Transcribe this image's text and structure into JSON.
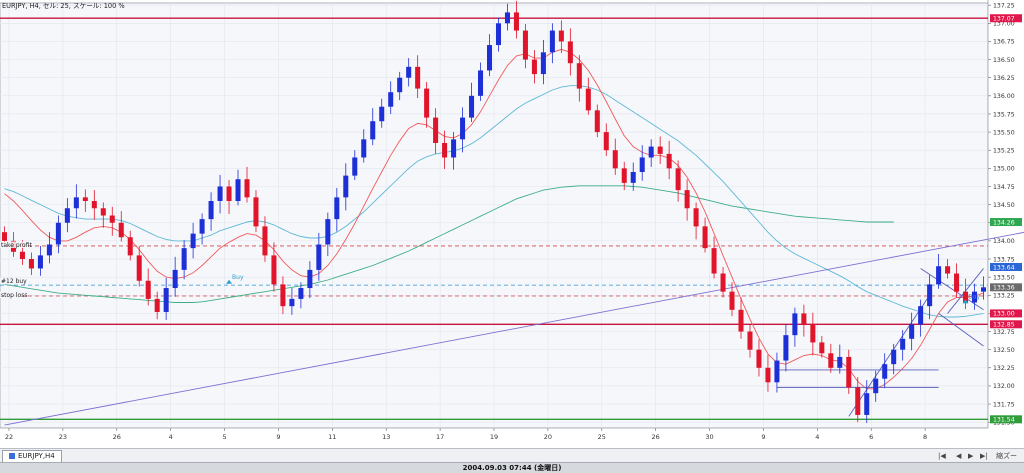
{
  "chart_data": {
    "type": "candlestick",
    "symbol_info": "EURJPY, H4, セル: 25, スケール: 100 %",
    "y_ticks": [
      "137.25",
      "137.00",
      "136.75",
      "136.50",
      "136.25",
      "136.00",
      "135.75",
      "135.50",
      "135.25",
      "135.00",
      "134.75",
      "134.50",
      "134.25",
      "134.00",
      "133.75",
      "133.50",
      "133.25",
      "133.00",
      "132.75",
      "132.50",
      "132.25",
      "132.00",
      "131.75",
      "131.50"
    ],
    "ylim": [
      131.42,
      137.28
    ],
    "x_ticks": [
      "22",
      "23",
      "26",
      "4",
      "5",
      "9",
      "11",
      "13",
      "17",
      "19",
      "20",
      "25",
      "26",
      "30",
      "9",
      "4",
      "6",
      "8"
    ],
    "x_tick_positions": [
      0,
      6,
      12,
      18,
      24,
      30,
      36,
      42,
      48,
      54,
      60,
      66,
      72,
      78,
      84,
      90,
      96,
      102
    ],
    "x_visible_end": 110,
    "price_labels": [
      {
        "price": 137.07,
        "text": "137.07",
        "color": "#e0174a"
      },
      {
        "price": 134.26,
        "text": "134.26",
        "color": "#2ea84f"
      },
      {
        "price": 133.64,
        "text": "133.64",
        "color": "#2b66d6"
      },
      {
        "price": 133.36,
        "text": "133.36",
        "color": "#6b6b6b"
      },
      {
        "price": 133.0,
        "text": "133.00",
        "color": "#e0174a"
      },
      {
        "price": 132.85,
        "text": "132.85",
        "color": "#e0174a"
      },
      {
        "price": 131.54,
        "text": "131.54",
        "color": "#2e9d3a"
      }
    ],
    "hlines": [
      {
        "price": 137.07,
        "color": "#c8143c",
        "style": "solid",
        "width": 1.4
      },
      {
        "price": 132.85,
        "color": "#c8143c",
        "style": "solid",
        "width": 1.4
      },
      {
        "price": 131.54,
        "color": "#2e9d3a",
        "style": "solid",
        "width": 1.4
      },
      {
        "price": 133.93,
        "color": "#d24a4a",
        "style": "dash",
        "width": 0.8
      },
      {
        "price": 133.39,
        "color": "#2b8fd6",
        "style": "dash",
        "width": 0.8
      },
      {
        "price": 133.24,
        "color": "#d24a4a",
        "style": "dash",
        "width": 0.8
      }
    ],
    "order_labels": [
      {
        "text": "take profit",
        "price": 133.93
      },
      {
        "text": "#12 buy",
        "price": 133.43
      },
      {
        "text": "stop loss",
        "price": 133.24
      }
    ],
    "buy_marks": [
      {
        "text": "Buy",
        "i": 25,
        "price": 133.45
      },
      {
        "text": "Buy",
        "i": 107,
        "price": 133.18
      }
    ],
    "closes": [
      134.0,
      133.85,
      133.75,
      133.62,
      133.8,
      133.95,
      134.25,
      134.45,
      134.6,
      134.55,
      134.45,
      134.35,
      134.25,
      134.05,
      133.8,
      133.45,
      133.2,
      133.02,
      133.35,
      133.6,
      133.9,
      134.1,
      134.3,
      134.55,
      134.75,
      134.55,
      134.85,
      134.6,
      134.2,
      133.8,
      133.4,
      133.1,
      133.2,
      133.35,
      133.6,
      133.95,
      134.3,
      134.6,
      134.9,
      135.15,
      135.4,
      135.65,
      135.85,
      136.05,
      136.25,
      136.4,
      136.1,
      135.7,
      135.35,
      135.15,
      135.4,
      135.7,
      136.0,
      136.35,
      136.7,
      137.0,
      137.15,
      136.9,
      136.5,
      136.3,
      136.6,
      136.9,
      136.75,
      136.45,
      136.1,
      135.8,
      135.5,
      135.25,
      135.0,
      134.8,
      134.95,
      135.15,
      135.3,
      135.2,
      135.0,
      134.7,
      134.45,
      134.2,
      133.9,
      133.55,
      133.3,
      133.05,
      132.75,
      132.5,
      132.25,
      132.05,
      132.35,
      132.7,
      133.0,
      132.85,
      132.6,
      132.45,
      132.25,
      132.4,
      131.98,
      131.6,
      131.9,
      132.1,
      132.3,
      132.5,
      132.65,
      132.85,
      133.1,
      133.4,
      133.65,
      133.55,
      133.3,
      133.15,
      133.3,
      133.36
    ],
    "ma_red": [
      134.65,
      134.55,
      134.42,
      134.28,
      134.15,
      134.05,
      134.0,
      134.0,
      134.05,
      134.12,
      134.18,
      134.2,
      134.18,
      134.12,
      134.02,
      133.88,
      133.72,
      133.58,
      133.5,
      133.48,
      133.5,
      133.56,
      133.66,
      133.78,
      133.9,
      133.98,
      134.05,
      134.1,
      134.08,
      134.0,
      133.88,
      133.72,
      133.6,
      133.52,
      133.5,
      133.55,
      133.66,
      133.82,
      134.02,
      134.24,
      134.48,
      134.72,
      134.95,
      135.18,
      135.38,
      135.55,
      135.62,
      135.6,
      135.52,
      135.44,
      135.42,
      135.48,
      135.6,
      135.78,
      136.0,
      136.22,
      136.42,
      136.55,
      136.58,
      136.52,
      136.52,
      136.6,
      136.64,
      136.6,
      136.5,
      136.35,
      136.15,
      135.92,
      135.68,
      135.45,
      135.3,
      135.22,
      135.18,
      135.18,
      135.14,
      135.04,
      134.88,
      134.66,
      134.4,
      134.1,
      133.8,
      133.5,
      133.2,
      132.92,
      132.66,
      132.44,
      132.32,
      132.3,
      132.36,
      132.42,
      132.44,
      132.42,
      132.36,
      132.34,
      132.24,
      132.06,
      131.96,
      131.96,
      132.02,
      132.12,
      132.24,
      132.38,
      132.56,
      132.78,
      133.0,
      133.16,
      133.22,
      133.22,
      133.24,
      133.28
    ],
    "ma_teal": [
      134.72,
      134.68,
      134.62,
      134.56,
      134.5,
      134.44,
      134.38,
      134.34,
      134.32,
      134.3,
      134.3,
      134.3,
      134.3,
      134.28,
      134.24,
      134.18,
      134.12,
      134.06,
      134.02,
      134.0,
      134.0,
      134.0,
      134.04,
      134.08,
      134.14,
      134.18,
      134.22,
      134.26,
      134.28,
      134.26,
      134.22,
      134.16,
      134.1,
      134.06,
      134.04,
      134.04,
      134.06,
      134.12,
      134.2,
      134.3,
      134.4,
      134.52,
      134.64,
      134.76,
      134.88,
      135.0,
      135.1,
      135.16,
      135.2,
      135.22,
      135.24,
      135.28,
      135.34,
      135.42,
      135.52,
      135.62,
      135.72,
      135.82,
      135.9,
      135.96,
      136.02,
      136.08,
      136.12,
      136.14,
      136.14,
      136.12,
      136.08,
      136.02,
      135.94,
      135.86,
      135.78,
      135.7,
      135.62,
      135.54,
      135.46,
      135.38,
      135.28,
      135.18,
      135.06,
      134.94,
      134.82,
      134.68,
      134.54,
      134.4,
      134.26,
      134.12,
      134.0,
      133.9,
      133.82,
      133.76,
      133.7,
      133.64,
      133.58,
      133.52,
      133.45,
      133.37,
      133.3,
      133.25,
      133.2,
      133.15,
      133.1,
      133.06,
      133.02,
      132.98,
      132.96,
      132.95,
      132.95,
      132.96,
      132.98,
      133.0
    ],
    "ma_green": [
      133.4,
      133.38,
      133.36,
      133.34,
      133.32,
      133.3,
      133.28,
      133.27,
      133.26,
      133.25,
      133.24,
      133.23,
      133.22,
      133.21,
      133.2,
      133.19,
      133.18,
      133.17,
      133.16,
      133.15,
      133.15,
      133.15,
      133.16,
      133.18,
      133.2,
      133.22,
      133.24,
      133.26,
      133.28,
      133.3,
      133.32,
      133.34,
      133.36,
      133.38,
      133.4,
      133.43,
      133.46,
      133.5,
      133.54,
      133.58,
      133.62,
      133.66,
      133.71,
      133.76,
      133.81,
      133.86,
      133.92,
      133.98,
      134.04,
      134.1,
      134.16,
      134.22,
      134.28,
      134.34,
      134.4,
      134.46,
      134.52,
      134.58,
      134.62,
      134.66,
      134.7,
      134.72,
      134.74,
      134.75,
      134.76,
      134.76,
      134.76,
      134.76,
      134.76,
      134.76,
      134.75,
      134.74,
      134.72,
      134.7,
      134.68,
      134.66,
      134.63,
      134.6,
      134.57,
      134.54,
      134.51,
      134.48,
      134.46,
      134.44,
      134.42,
      134.4,
      134.38,
      134.36,
      134.34,
      134.33,
      134.32,
      134.31,
      134.3,
      134.29,
      134.28,
      134.27,
      134.26,
      134.26,
      134.26,
      134.26
    ],
    "trendlines": [
      {
        "i1": 0,
        "p1": 131.46,
        "i2": 129,
        "p2": 134.48,
        "color": "#7b6fd1"
      },
      {
        "i1": 86,
        "p1": 132.22,
        "i2": 104,
        "p2": 132.22,
        "color": "#5a5fb8"
      },
      {
        "i1": 86,
        "p1": 131.98,
        "i2": 104,
        "p2": 131.98,
        "color": "#5a5fb8"
      },
      {
        "i1": 94,
        "p1": 131.58,
        "i2": 103,
        "p2": 133.25,
        "color": "#5a5fb8"
      },
      {
        "i1": 102,
        "p1": 133.62,
        "i2": 109,
        "p2": 133.05,
        "color": "#5a5fb8"
      },
      {
        "i1": 104,
        "p1": 133.0,
        "i2": 109,
        "p2": 132.55,
        "color": "#5a5fb8"
      },
      {
        "i1": 105,
        "p1": 133.0,
        "i2": 109,
        "p2": 133.62,
        "color": "#5a5fb8"
      }
    ],
    "bull_color": "#1d2fd6",
    "bear_color": "#e0142a",
    "grid": true
  },
  "tab": {
    "label": "EURJPY,H4"
  },
  "nav": {
    "first": "|◀",
    "prev": "◀",
    "next": "▶",
    "last": "▶|"
  },
  "status": {
    "timestamp": "2004.09.03 07:44 (金曜日)"
  },
  "zoom_label": "縮ズー"
}
